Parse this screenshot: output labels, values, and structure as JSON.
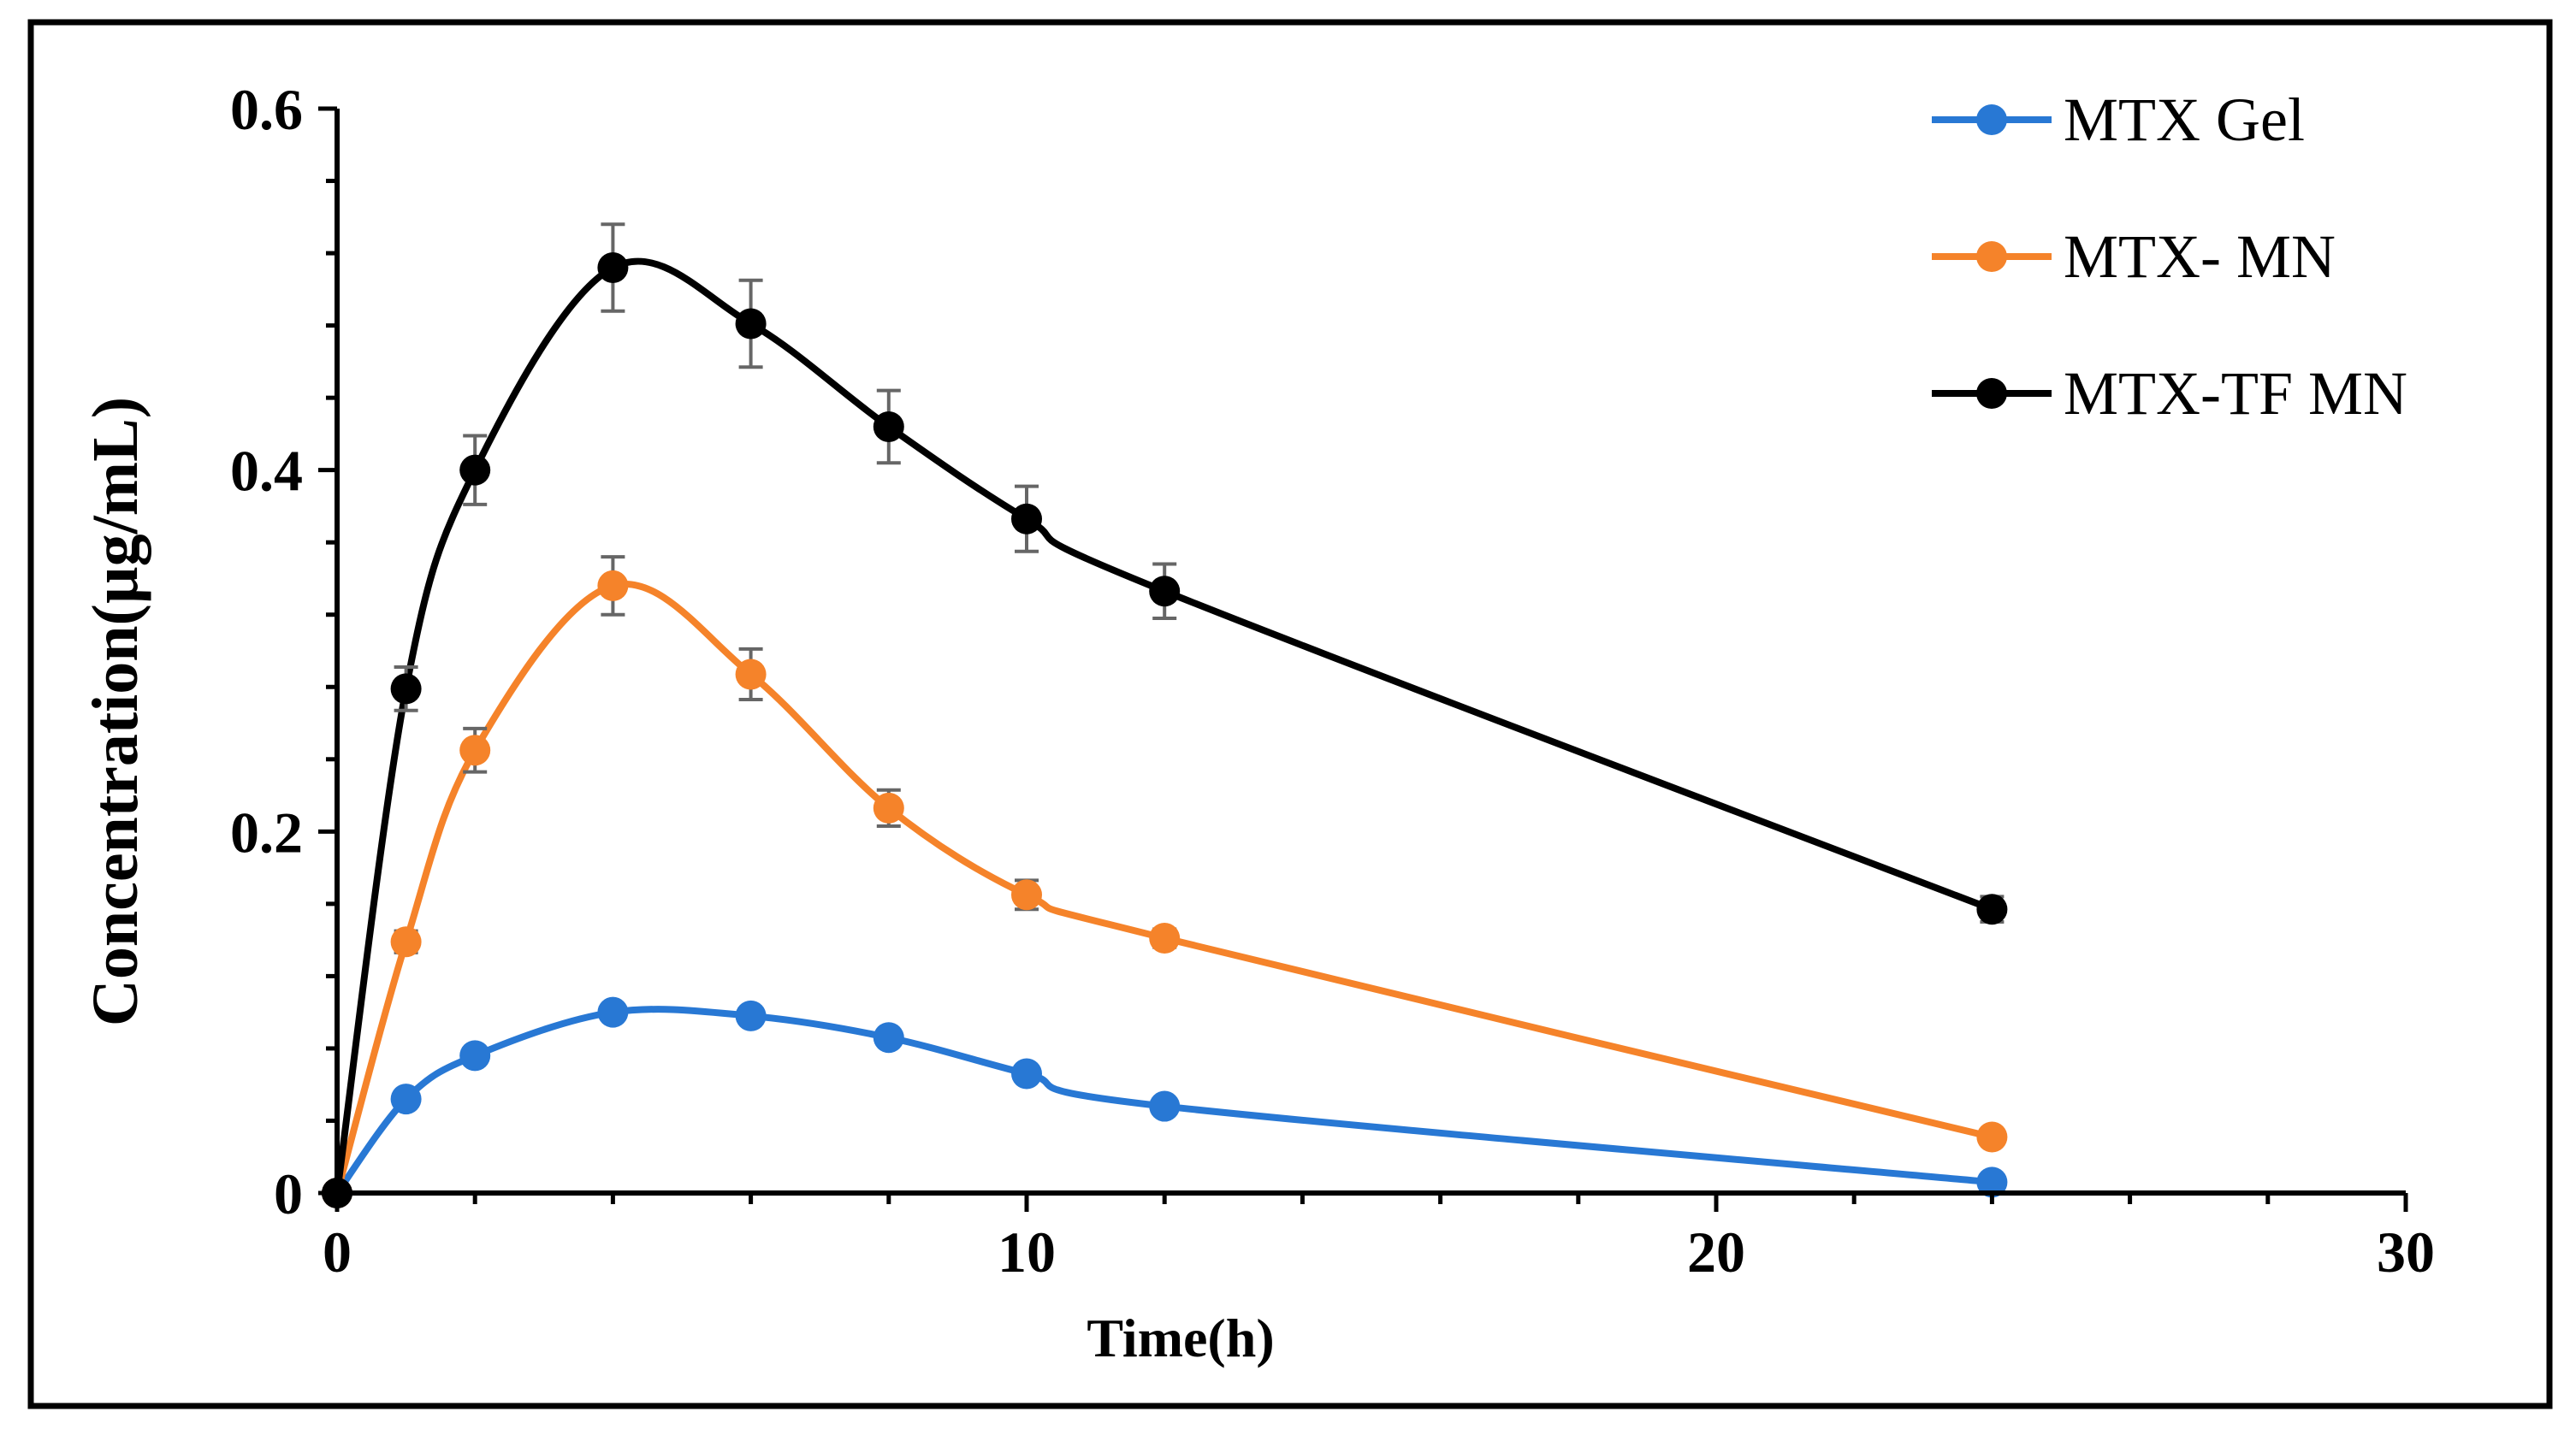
{
  "chart_data": {
    "type": "line",
    "title": "",
    "xlabel": "Time(h)",
    "ylabel": "Concentration(µg/mL)",
    "xlim": [
      0,
      30
    ],
    "ylim": [
      0,
      0.6
    ],
    "x_ticks": [
      0,
      10,
      20,
      30
    ],
    "y_ticks": [
      0,
      0.2,
      0.4,
      0.6
    ],
    "x_tick_labels": [
      "0",
      "10",
      "20",
      "30"
    ],
    "y_tick_labels": [
      "0",
      "0.2",
      "0.4",
      "0.6"
    ],
    "grid": false,
    "legend_position": "top-right",
    "x": [
      0,
      1,
      2,
      4,
      6,
      8,
      10,
      12,
      24
    ],
    "series": [
      {
        "name": "MTX Gel",
        "color": "#2878d4",
        "values": [
          0,
          0.052,
          0.076,
          0.1,
          0.098,
          0.086,
          0.066,
          0.048,
          0.006
        ],
        "errors": []
      },
      {
        "name": "MTX- MN",
        "color": "#f5832a",
        "values": [
          0,
          0.139,
          0.245,
          0.336,
          0.287,
          0.213,
          0.165,
          0.141,
          0.031
        ],
        "errors": [
          0,
          0.006,
          0.012,
          0.016,
          0.014,
          0.01,
          0.008,
          0.005,
          0
        ]
      },
      {
        "name": "MTX-TF MN",
        "color": "#000000",
        "values": [
          0,
          0.279,
          0.4,
          0.512,
          0.481,
          0.424,
          0.373,
          0.333,
          0.157
        ],
        "errors": [
          0,
          0.012,
          0.019,
          0.024,
          0.024,
          0.02,
          0.018,
          0.015,
          0.007
        ]
      }
    ]
  }
}
